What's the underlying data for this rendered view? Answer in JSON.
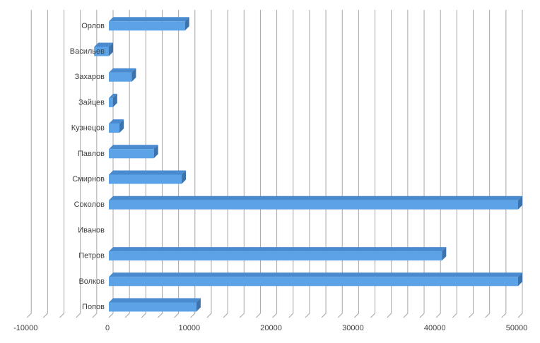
{
  "chart_data": {
    "type": "bar",
    "orientation": "horizontal",
    "style": "3d",
    "categories": [
      "Попов",
      "Волков",
      "Петров",
      "Иванов",
      "Соколов",
      "Смирнов",
      "Павлов",
      "Кузнецов",
      "Зайцев",
      "Захаров",
      "Васильев",
      "Орлов"
    ],
    "values": [
      10700,
      50000,
      40700,
      0,
      50000,
      8900,
      5500,
      1300,
      500,
      2800,
      -1800,
      9300
    ],
    "xlim": [
      -10000,
      50000
    ],
    "xticks": [
      -10000,
      0,
      10000,
      20000,
      30000,
      40000,
      50000
    ],
    "xtick_labels": [
      "-10000",
      "0",
      "10000",
      "20000",
      "30000",
      "40000",
      "50000"
    ],
    "grid": true,
    "legend": "none",
    "colors": {
      "bar_front": "#5BA3E6",
      "bar_top": "#4A8BCF",
      "bar_side": "#3C73AD",
      "grid": "#A6A6A6"
    }
  }
}
